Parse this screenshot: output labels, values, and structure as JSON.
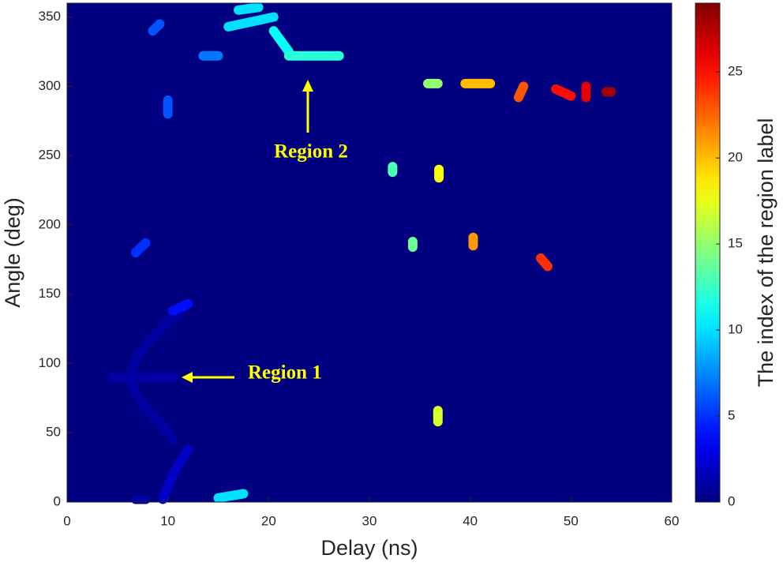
{
  "chart_data": {
    "type": "region-map",
    "x_label": "Delay (ns)",
    "y_label": "Angle (deg)",
    "colorbar_label": "The index of the region label",
    "xlim": [
      0,
      60
    ],
    "xticks": [
      0,
      10,
      20,
      30,
      40,
      50,
      60
    ],
    "ylim": [
      0,
      360
    ],
    "yticks": [
      0,
      50,
      100,
      150,
      200,
      250,
      300,
      350
    ],
    "clim": [
      0,
      29
    ],
    "cticks": [
      0,
      5,
      10,
      15,
      20,
      25
    ],
    "colormap": "jet",
    "background": 0,
    "annotations": [
      "Region 1",
      "Region 2"
    ],
    "regions": [
      {
        "delay": [
          11.5,
          10,
          8,
          7,
          6.2
        ],
        "angle": [
          140,
          130,
          115,
          105,
          92
        ],
        "label": 1
      },
      {
        "delay": [
          4.5,
          10.5
        ],
        "angle": [
          90,
          90
        ],
        "label": 1
      },
      {
        "delay": [
          6.2,
          7.5,
          9.5,
          10.5
        ],
        "angle": [
          88,
          70,
          55,
          45
        ],
        "label": 1
      },
      {
        "delay": [
          6.8,
          7.8
        ],
        "angle": [
          2,
          2
        ],
        "label": 1
      },
      {
        "delay": [
          9.5,
          10.5,
          12
        ],
        "angle": [
          2,
          20,
          38
        ],
        "label": 2
      },
      {
        "delay": [
          10.5,
          12
        ],
        "angle": [
          138,
          143
        ],
        "label": 4
      },
      {
        "delay": [
          6.8,
          7.8
        ],
        "angle": [
          180,
          187
        ],
        "label": 5
      },
      {
        "delay": [
          8.5,
          9.2
        ],
        "angle": [
          340,
          345
        ],
        "label": 6
      },
      {
        "delay": [
          10,
          10
        ],
        "angle": [
          280,
          290
        ],
        "label": 6
      },
      {
        "delay": [
          13.5,
          15
        ],
        "angle": [
          322,
          322
        ],
        "label": 7
      },
      {
        "delay": [
          15,
          17.5
        ],
        "angle": [
          3,
          6
        ],
        "label": 10
      },
      {
        "delay": [
          16,
          20.5
        ],
        "angle": [
          343,
          350
        ],
        "label": 10
      },
      {
        "delay": [
          17,
          19
        ],
        "angle": [
          355,
          357
        ],
        "label": 10
      },
      {
        "delay": [
          20.5,
          22
        ],
        "angle": [
          340,
          325
        ],
        "label": 11
      },
      {
        "delay": [
          22,
          27
        ],
        "angle": [
          322,
          322
        ],
        "label": 12
      },
      {
        "delay": [
          32.3,
          32.3
        ],
        "angle": [
          238,
          242
        ],
        "label": 13
      },
      {
        "delay": [
          34.3,
          34.3
        ],
        "angle": [
          184,
          188
        ],
        "label": 14
      },
      {
        "delay": [
          35.8,
          36.8
        ],
        "angle": [
          302,
          302
        ],
        "label": 15
      },
      {
        "delay": [
          36.8,
          36.8
        ],
        "angle": [
          58,
          66
        ],
        "label": 17
      },
      {
        "delay": [
          36.9,
          36.9
        ],
        "angle": [
          234,
          240
        ],
        "label": 18
      },
      {
        "delay": [
          39.5,
          42
        ],
        "angle": [
          302,
          302
        ],
        "label": 20
      },
      {
        "delay": [
          40.3,
          40.3
        ],
        "angle": [
          185,
          191
        ],
        "label": 21
      },
      {
        "delay": [
          44.8,
          45.3
        ],
        "angle": [
          292,
          300
        ],
        "label": 23
      },
      {
        "delay": [
          47,
          47.7
        ],
        "angle": [
          176,
          170
        ],
        "label": 24
      },
      {
        "delay": [
          48.5,
          50
        ],
        "angle": [
          298,
          293
        ],
        "label": 25
      },
      {
        "delay": [
          51.5,
          51.5
        ],
        "angle": [
          292,
          300
        ],
        "label": 26
      },
      {
        "delay": [
          53.5,
          54
        ],
        "angle": [
          296,
          296
        ],
        "label": 28
      }
    ]
  }
}
